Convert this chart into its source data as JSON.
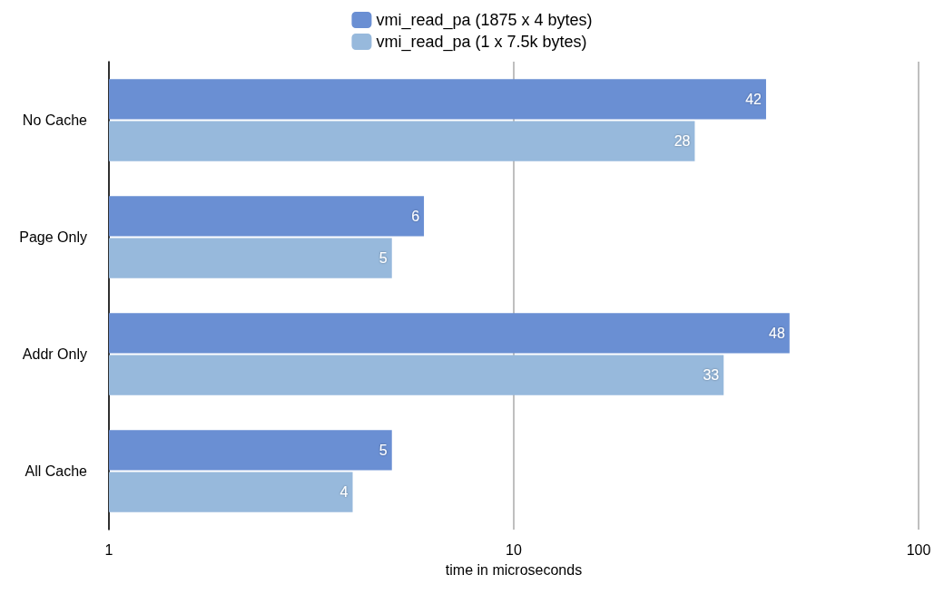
{
  "chart_data": {
    "type": "bar",
    "orientation": "horizontal",
    "xlabel": "time in microseconds",
    "categories": [
      "No Cache",
      "Page Only",
      "Addr Only",
      "All Cache"
    ],
    "series": [
      {
        "name": "vmi_read_pa (1875 x 4 bytes)",
        "color": "#6a8fd3",
        "values": [
          42,
          6,
          48,
          5
        ]
      },
      {
        "name": "vmi_read_pa (1 x 7.5k bytes)",
        "color": "#97b9dc",
        "values": [
          28,
          5,
          33,
          4
        ]
      }
    ],
    "xlim": [
      1,
      100
    ],
    "xticks": [
      1,
      10,
      100
    ],
    "log": "x",
    "grid": "x",
    "legend": "top",
    "data_labels": true
  }
}
